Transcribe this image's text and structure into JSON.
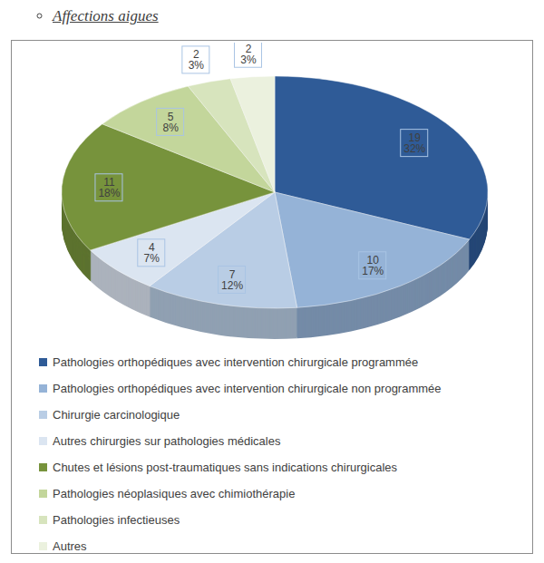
{
  "chart_data": {
    "type": "pie",
    "title": "Affections aigues",
    "categories": [
      "Pathologies orthopédiques avec intervention chirurgicale programmée",
      "Pathologies orthopédiques avec intervention chirurgicale non programmée",
      "Chirurgie carcinologique",
      "Autres chirurgies sur pathologies médicales",
      "Chutes et lésions post-traumatiques sans indications chirurgicales",
      "Pathologies néoplasiques avec chimiothérapie",
      "Pathologies infectieuses",
      "Autres"
    ],
    "values": [
      19,
      10,
      7,
      4,
      11,
      5,
      2,
      2
    ],
    "percent_labels": [
      "32%",
      "17%",
      "12%",
      "7%",
      "18%",
      "8%",
      "3%",
      "3%"
    ],
    "colors": [
      "#2f5b97",
      "#95b3d7",
      "#b9cde5",
      "#dbe5f1",
      "#77933c",
      "#c3d69b",
      "#d7e4bd",
      "#ebf1de"
    ],
    "data_labels": true,
    "legend": "bottom"
  }
}
